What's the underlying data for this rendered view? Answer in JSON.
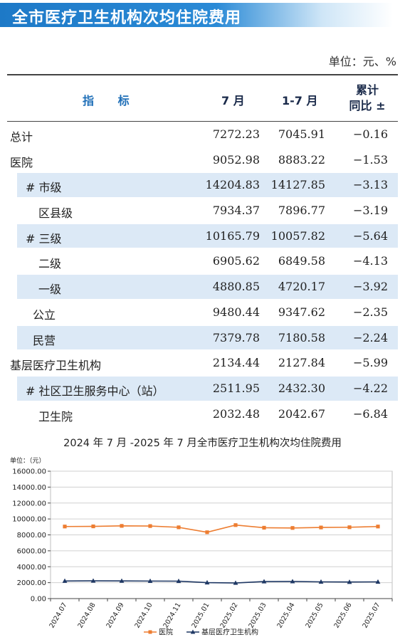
{
  "title": "全市医疗卫生机构次均住院费用",
  "unit": "单位：元、%",
  "table": {
    "headers": {
      "name": "指 标",
      "jul": "7 月",
      "ytd": "1-7 月",
      "yoy_line1": "累计",
      "yoy_line2": "同比 ±"
    },
    "rows": [
      {
        "name": "总计",
        "jul": "7272.23",
        "ytd": "7045.91",
        "yoy": "−0.16",
        "indent": 0,
        "shade": 0
      },
      {
        "name": "医院",
        "jul": "9052.98",
        "ytd": "8883.22",
        "yoy": "−1.53",
        "indent": 0,
        "shade": -1
      },
      {
        "name": "# 市级",
        "jul": "14204.83",
        "ytd": "14127.85",
        "yoy": "−3.13",
        "indent": 1,
        "shade": 1
      },
      {
        "name": "区县级",
        "jul": "7934.37",
        "ytd": "7896.77",
        "yoy": "−3.19",
        "indent": 2,
        "shade": -1
      },
      {
        "name": "# 三级",
        "jul": "10165.79",
        "ytd": "10057.82",
        "yoy": "−5.64",
        "indent": 1,
        "shade": 1
      },
      {
        "name": "二级",
        "jul": "6905.62",
        "ytd": "6849.58",
        "yoy": "−4.13",
        "indent": 2,
        "shade": -1
      },
      {
        "name": "一级",
        "jul": "4880.85",
        "ytd": "4720.17",
        "yoy": "−3.92",
        "indent": 2,
        "shade": 1
      },
      {
        "name": "公立",
        "jul": "9480.44",
        "ytd": "9347.62",
        "yoy": "−2.35",
        "indent": 1.3,
        "shade": -1
      },
      {
        "name": "民营",
        "jul": "7379.78",
        "ytd": "7180.58",
        "yoy": "−2.24",
        "indent": 1.3,
        "shade": 1
      },
      {
        "name": "基层医疗卫生机构",
        "jul": "2134.44",
        "ytd": "2127.84",
        "yoy": "−5.99",
        "indent": 0,
        "shade": -1
      },
      {
        "name": "# 社区卫生服务中心（站）",
        "jul": "2511.95",
        "ytd": "2432.30",
        "yoy": "−4.22",
        "indent": 1,
        "shade": 1
      },
      {
        "name": "卫生院",
        "jul": "2032.48",
        "ytd": "2042.67",
        "yoy": "−6.84",
        "indent": 2,
        "shade": -1
      }
    ]
  },
  "chart_title": "2024 年 7 月 -2025 年 7 月全市医疗卫生机构次均住院费用",
  "chart_data": {
    "type": "line",
    "unit_label": "单位：（元）",
    "x": [
      "2024.07",
      "2024.08",
      "2024.09",
      "2024.10",
      "2024.11",
      "2025.01",
      "2025.02",
      "2025.03",
      "2025.04",
      "2025.05",
      "2025.06",
      "2025.07"
    ],
    "ylim": [
      0,
      16000
    ],
    "yticks": [
      "0.00",
      "2000.00",
      "4000.00",
      "6000.00",
      "8000.00",
      "10000.00",
      "12000.00",
      "14000.00",
      "16000.00"
    ],
    "grid": true,
    "legend_position": "bottom",
    "series": [
      {
        "name": "医院",
        "color": "#ed7d31",
        "marker": "square",
        "values": [
          9050,
          9070,
          9130,
          9110,
          8950,
          8330,
          9230,
          8900,
          8870,
          8930,
          8960,
          9050
        ]
      },
      {
        "name": "基层医疗卫生机构",
        "color": "#1f3864",
        "marker": "triangle",
        "values": [
          2210,
          2230,
          2220,
          2200,
          2190,
          2010,
          1960,
          2140,
          2150,
          2100,
          2080,
          2100
        ]
      }
    ]
  }
}
